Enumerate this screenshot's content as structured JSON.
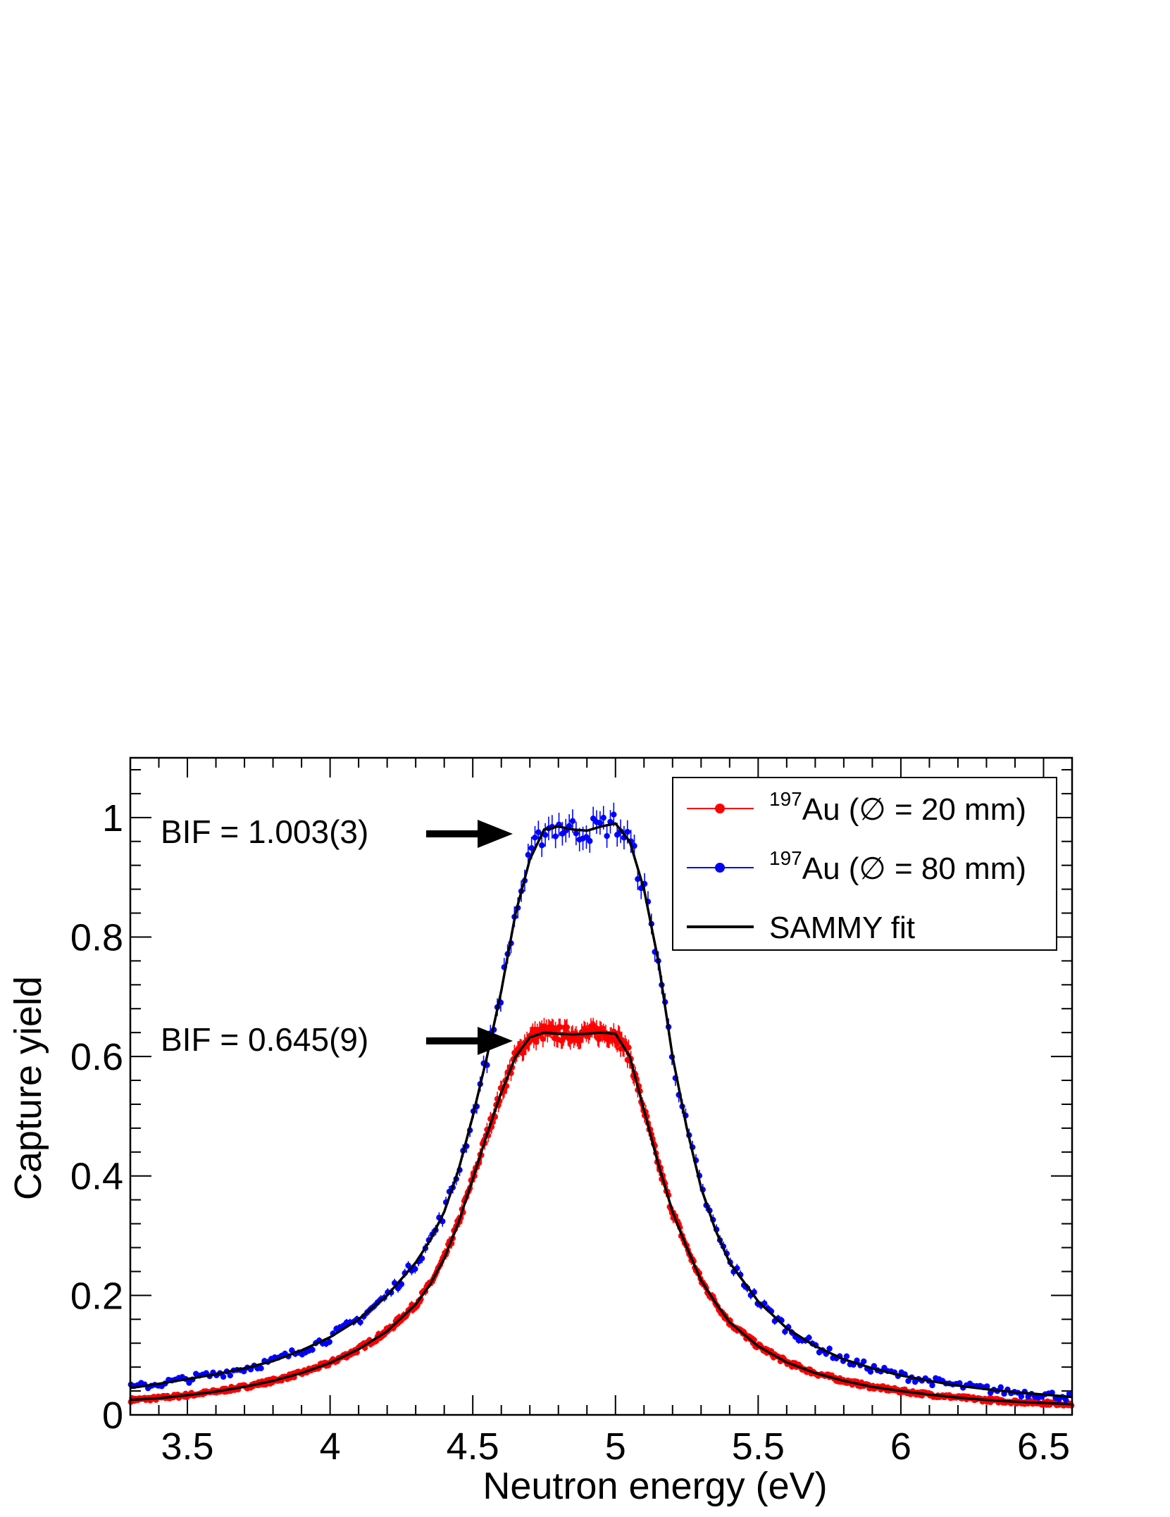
{
  "chart_data": {
    "type": "scatter",
    "xlabel": "Neutron energy (eV)",
    "ylabel": "Capture yield",
    "xlim": [
      3.3,
      6.6
    ],
    "ylim": [
      0,
      1.1
    ],
    "x_ticks": [
      "3.5",
      "4",
      "4.5",
      "5",
      "5.5",
      "6",
      "6.5"
    ],
    "y_ticks": [
      "0",
      "0.2",
      "0.4",
      "0.6",
      "0.8",
      "1"
    ],
    "legend_position": "top-right",
    "legend": [
      {
        "pre": "197",
        "text": "Au (∅ = 20 mm)",
        "style": "marker-line",
        "color": "#ff0000"
      },
      {
        "pre": "197",
        "text": "Au (∅ = 80 mm)",
        "style": "marker-line",
        "color": "#0000ff"
      },
      {
        "pre": "",
        "text": "SAMMY fit",
        "style": "line",
        "color": "#000000"
      }
    ],
    "annotations": [
      {
        "text": "BIF = 1.003(3)",
        "arrow": true,
        "level": 0.99
      },
      {
        "text": "BIF = 0.645(9)",
        "arrow": true,
        "level": 0.635
      }
    ],
    "series": [
      {
        "name": "197Au (∅ = 20 mm)",
        "color": "#ff0000",
        "kind": "points",
        "x": [
          3.3,
          3.4,
          3.5,
          3.6,
          3.7,
          3.8,
          3.9,
          4.0,
          4.1,
          4.2,
          4.3,
          4.35,
          4.4,
          4.45,
          4.5,
          4.55,
          4.6,
          4.65,
          4.7,
          4.75,
          4.8,
          4.85,
          4.9,
          4.95,
          5.0,
          5.05,
          5.1,
          5.15,
          5.2,
          5.25,
          5.3,
          5.35,
          5.4,
          5.5,
          5.6,
          5.7,
          5.8,
          5.9,
          6.0,
          6.1,
          6.2,
          6.3,
          6.4,
          6.5,
          6.6
        ],
        "y": [
          0.025,
          0.028,
          0.033,
          0.039,
          0.047,
          0.057,
          0.07,
          0.087,
          0.11,
          0.14,
          0.185,
          0.218,
          0.262,
          0.322,
          0.395,
          0.47,
          0.54,
          0.6,
          0.632,
          0.64,
          0.638,
          0.637,
          0.638,
          0.64,
          0.638,
          0.6,
          0.51,
          0.42,
          0.34,
          0.28,
          0.225,
          0.188,
          0.155,
          0.115,
          0.088,
          0.07,
          0.057,
          0.047,
          0.04,
          0.034,
          0.029,
          0.025,
          0.022,
          0.02,
          0.018
        ]
      },
      {
        "name": "197Au (∅ = 80 mm)",
        "color": "#0000ff",
        "kind": "points",
        "x": [
          3.3,
          3.4,
          3.5,
          3.6,
          3.7,
          3.8,
          3.9,
          4.0,
          4.1,
          4.2,
          4.3,
          4.35,
          4.4,
          4.45,
          4.5,
          4.55,
          4.6,
          4.65,
          4.7,
          4.75,
          4.8,
          4.85,
          4.9,
          4.95,
          5.0,
          5.05,
          5.1,
          5.15,
          5.2,
          5.25,
          5.3,
          5.35,
          5.4,
          5.5,
          5.6,
          5.7,
          5.8,
          5.9,
          6.0,
          6.1,
          6.2,
          6.3,
          6.4,
          6.5,
          6.6
        ],
        "y": [
          0.045,
          0.052,
          0.06,
          0.068,
          0.078,
          0.09,
          0.108,
          0.13,
          0.16,
          0.2,
          0.255,
          0.292,
          0.34,
          0.41,
          0.5,
          0.6,
          0.71,
          0.84,
          0.93,
          0.98,
          0.985,
          0.98,
          0.978,
          0.985,
          0.99,
          0.96,
          0.88,
          0.76,
          0.6,
          0.48,
          0.38,
          0.31,
          0.255,
          0.19,
          0.145,
          0.115,
          0.093,
          0.078,
          0.066,
          0.057,
          0.049,
          0.043,
          0.038,
          0.034,
          0.03
        ]
      },
      {
        "name": "SAMMY fit",
        "color": "#000000",
        "kind": "line",
        "x": [
          3.3,
          3.4,
          3.5,
          3.6,
          3.7,
          3.8,
          3.9,
          4.0,
          4.1,
          4.2,
          4.3,
          4.35,
          4.4,
          4.45,
          4.5,
          4.55,
          4.6,
          4.65,
          4.7,
          4.75,
          4.8,
          4.85,
          4.9,
          4.95,
          5.0,
          5.05,
          5.1,
          5.15,
          5.2,
          5.25,
          5.3,
          5.35,
          5.4,
          5.5,
          5.6,
          5.7,
          5.8,
          5.9,
          6.0,
          6.1,
          6.2,
          6.3,
          6.4,
          6.5,
          6.6
        ],
        "y": [
          0.025,
          0.028,
          0.033,
          0.039,
          0.047,
          0.057,
          0.07,
          0.087,
          0.11,
          0.14,
          0.185,
          0.218,
          0.262,
          0.322,
          0.395,
          0.47,
          0.54,
          0.6,
          0.632,
          0.64,
          0.638,
          0.637,
          0.638,
          0.64,
          0.638,
          0.6,
          0.51,
          0.42,
          0.34,
          0.28,
          0.225,
          0.188,
          0.155,
          0.115,
          0.088,
          0.07,
          0.057,
          0.047,
          0.04,
          0.034,
          0.029,
          0.025,
          0.022,
          0.02,
          0.018
        ]
      },
      {
        "name": "SAMMY fit",
        "color": "#000000",
        "kind": "line",
        "x": [
          3.3,
          3.4,
          3.5,
          3.6,
          3.7,
          3.8,
          3.9,
          4.0,
          4.1,
          4.2,
          4.3,
          4.35,
          4.4,
          4.45,
          4.5,
          4.55,
          4.6,
          4.65,
          4.7,
          4.75,
          4.8,
          4.85,
          4.9,
          4.95,
          5.0,
          5.05,
          5.1,
          5.15,
          5.2,
          5.25,
          5.3,
          5.35,
          5.4,
          5.5,
          5.6,
          5.7,
          5.8,
          5.9,
          6.0,
          6.1,
          6.2,
          6.3,
          6.4,
          6.5,
          6.6
        ],
        "y": [
          0.045,
          0.052,
          0.06,
          0.068,
          0.078,
          0.09,
          0.108,
          0.13,
          0.16,
          0.2,
          0.255,
          0.292,
          0.34,
          0.41,
          0.5,
          0.6,
          0.71,
          0.84,
          0.93,
          0.98,
          0.985,
          0.98,
          0.978,
          0.985,
          0.99,
          0.96,
          0.88,
          0.76,
          0.6,
          0.48,
          0.38,
          0.31,
          0.255,
          0.19,
          0.145,
          0.115,
          0.093,
          0.078,
          0.066,
          0.057,
          0.049,
          0.043,
          0.038,
          0.034,
          0.03
        ]
      }
    ]
  }
}
